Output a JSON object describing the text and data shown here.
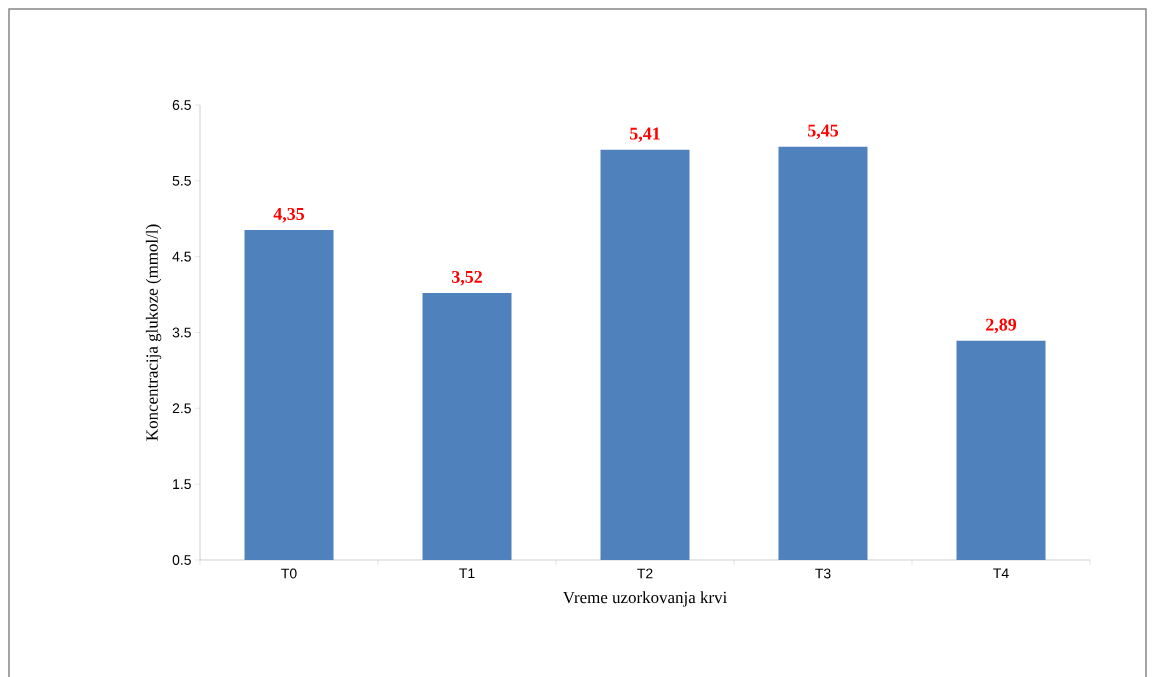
{
  "chart_data": {
    "type": "bar",
    "xlabel": "Vreme uzorkovanja krvi",
    "ylabel": "Koncentracija glukoze (mmol/l)",
    "categories": [
      "T0",
      "T1",
      "T2",
      "T3",
      "T4"
    ],
    "values": [
      4.35,
      3.52,
      5.41,
      5.45,
      2.89
    ],
    "value_labels": [
      "4,35",
      "3,52",
      "5,41",
      "5,45",
      "2,89"
    ],
    "color": "#4f81bd",
    "base": [
      0.5,
      0.5,
      0.5,
      0.5,
      0.5
    ],
    "ylim": [
      0.5,
      6.5
    ],
    "yticks": [
      0.5,
      1.5,
      2.5,
      3.5,
      4.5,
      5.5,
      6.5
    ],
    "grid": false
  }
}
